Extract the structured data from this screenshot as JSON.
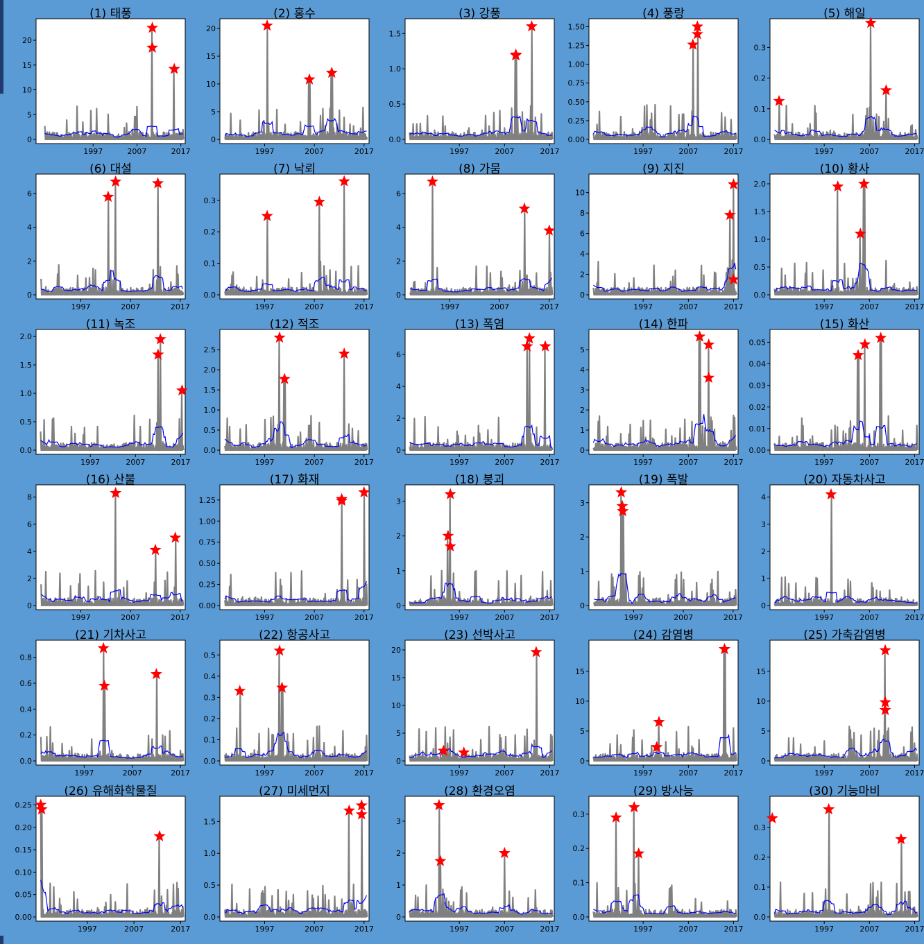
{
  "colors": {
    "background": "#5b9bd5",
    "plot_bg": "#ffffff",
    "raw_series": "#808080",
    "smooth_series": "#0000ff",
    "peak_marker": "#ff0000"
  },
  "chart_data": [
    {
      "type": "line",
      "title": "(1) 태풍",
      "yticks": [
        0,
        5,
        10,
        15,
        20
      ],
      "ylim": [
        0,
        23.5
      ],
      "xticks": [
        1997,
        2007,
        2017
      ],
      "xlim": [
        1984,
        2018
      ],
      "stars": [
        {
          "x": 2010.5,
          "y": 22.5
        },
        {
          "x": 2010.5,
          "y": 18.5
        },
        {
          "x": 2015.5,
          "y": 14.2
        }
      ]
    },
    {
      "type": "line",
      "title": "(2) 홍수",
      "yticks": [
        0,
        5,
        10,
        15,
        20
      ],
      "ylim": [
        0,
        21
      ],
      "xticks": [
        1997,
        2007,
        2017
      ],
      "xlim": [
        1988,
        2018
      ],
      "stars": [
        {
          "x": 1997.5,
          "y": 20.5
        },
        {
          "x": 2006,
          "y": 10.8
        },
        {
          "x": 2010.5,
          "y": 12
        }
      ]
    },
    {
      "type": "line",
      "title": "(3) 강풍",
      "yticks": [
        0.0,
        0.5,
        1.0,
        1.5
      ],
      "ylim": [
        0,
        1.65
      ],
      "xticks": [
        1997,
        2007,
        2017
      ],
      "xlim": [
        1985,
        2018
      ],
      "stars": [
        {
          "x": 2009.5,
          "y": 1.2
        },
        {
          "x": 2009.5,
          "y": 1.19
        },
        {
          "x": 2013,
          "y": 1.6
        }
      ]
    },
    {
      "type": "line",
      "title": "(4) 풍랑",
      "yticks": [
        0.0,
        0.25,
        0.5,
        0.75,
        1.0,
        1.25,
        1.5
      ],
      "ylim": [
        0,
        1.55
      ],
      "xticks": [
        1997,
        2007,
        2017
      ],
      "xlim": [
        1985,
        2018
      ],
      "stars": [
        {
          "x": 2008,
          "y": 1.26
        },
        {
          "x": 2009,
          "y": 1.5
        },
        {
          "x": 2009,
          "y": 1.4
        }
      ]
    },
    {
      "type": "line",
      "title": "(5) 해일",
      "yticks": [
        0.0,
        0.1,
        0.2,
        0.3
      ],
      "ylim": [
        0,
        0.38
      ],
      "xticks": [
        1997,
        2007,
        2017
      ],
      "xlim": [
        1985,
        2018
      ],
      "stars": [
        {
          "x": 1987,
          "y": 0.125
        },
        {
          "x": 2007.3,
          "y": 0.38
        },
        {
          "x": 2010.7,
          "y": 0.16
        }
      ]
    },
    {
      "type": "line",
      "title": "(6) 대설",
      "yticks": [
        0,
        2,
        4,
        6
      ],
      "ylim": [
        0,
        6.9
      ],
      "xticks": [
        1997,
        2007,
        2017
      ],
      "xlim": [
        1988,
        2018
      ],
      "stars": [
        {
          "x": 2002.5,
          "y": 5.8
        },
        {
          "x": 2004,
          "y": 6.7
        },
        {
          "x": 2012.5,
          "y": 6.6
        }
      ]
    },
    {
      "type": "line",
      "title": "(7) 낙뢰",
      "yticks": [
        0.0,
        0.1,
        0.2,
        0.3
      ],
      "ylim": [
        0,
        0.37
      ],
      "xticks": [
        1997,
        2007,
        2017
      ],
      "xlim": [
        1988,
        2018
      ],
      "stars": [
        {
          "x": 1997.5,
          "y": 0.25
        },
        {
          "x": 2008,
          "y": 0.295
        },
        {
          "x": 2013,
          "y": 0.36
        }
      ]
    },
    {
      "type": "line",
      "title": "(8) 가뭄",
      "yticks": [
        0,
        2,
        4,
        6
      ],
      "ylim": [
        0,
        6.9
      ],
      "xticks": [
        1997,
        2007,
        2017
      ],
      "xlim": [
        1988,
        2018
      ],
      "stars": [
        {
          "x": 1993.5,
          "y": 6.7
        },
        {
          "x": 2012,
          "y": 5.1
        },
        {
          "x": 2017,
          "y": 3.8
        }
      ]
    },
    {
      "type": "line",
      "title": "(9) 지진",
      "yticks": [
        0,
        2,
        4,
        6,
        8,
        10
      ],
      "ylim": [
        0,
        11.4
      ],
      "xticks": [
        1997,
        2007,
        2017
      ],
      "xlim": [
        1985,
        2018
      ],
      "stars": [
        {
          "x": 2016.2,
          "y": 7.8
        },
        {
          "x": 2017,
          "y": 10.8
        },
        {
          "x": 2017,
          "y": 1.5
        }
      ]
    },
    {
      "type": "line",
      "title": "(10) 황사",
      "yticks": [
        0.0,
        0.5,
        1.0,
        1.5,
        2.0
      ],
      "ylim": [
        0,
        2.1
      ],
      "xticks": [
        1997,
        2007,
        2017
      ],
      "xlim": [
        1985,
        2018
      ],
      "stars": [
        {
          "x": 2000,
          "y": 1.95
        },
        {
          "x": 2005,
          "y": 1.1
        },
        {
          "x": 2005.8,
          "y": 2.0
        }
      ]
    },
    {
      "type": "line",
      "title": "(11) 녹조",
      "yticks": [
        0.0,
        0.5,
        1.0,
        1.5,
        2.0
      ],
      "ylim": [
        0,
        2.05
      ],
      "xticks": [
        1997,
        2007,
        2017
      ],
      "xlim": [
        1985,
        2018
      ],
      "stars": [
        {
          "x": 2012,
          "y": 1.68
        },
        {
          "x": 2012.5,
          "y": 1.95
        },
        {
          "x": 2017.3,
          "y": 1.05
        }
      ]
    },
    {
      "type": "line",
      "title": "(12) 적조",
      "yticks": [
        0.0,
        0.5,
        1.0,
        1.5,
        2.0,
        2.5
      ],
      "ylim": [
        0,
        2.9
      ],
      "xticks": [
        1997,
        2007,
        2017
      ],
      "xlim": [
        1988,
        2018
      ],
      "stars": [
        {
          "x": 2000,
          "y": 2.8
        },
        {
          "x": 2001,
          "y": 1.77
        },
        {
          "x": 2013,
          "y": 2.4
        }
      ]
    },
    {
      "type": "line",
      "title": "(13) 폭염",
      "yticks": [
        0,
        2,
        4,
        6
      ],
      "ylim": [
        0,
        7.3
      ],
      "xticks": [
        1997,
        2007,
        2017
      ],
      "xlim": [
        1985,
        2018
      ],
      "stars": [
        {
          "x": 2012,
          "y": 6.5
        },
        {
          "x": 2012.5,
          "y": 7.0
        },
        {
          "x": 2016,
          "y": 6.5
        }
      ]
    },
    {
      "type": "line",
      "title": "(14) 한파",
      "yticks": [
        0,
        1,
        2,
        3,
        4,
        5
      ],
      "ylim": [
        0,
        5.8
      ],
      "xticks": [
        1997,
        2007,
        2017
      ],
      "xlim": [
        1985,
        2018
      ],
      "stars": [
        {
          "x": 2009.5,
          "y": 5.65
        },
        {
          "x": 2011.5,
          "y": 5.25
        },
        {
          "x": 2011.5,
          "y": 3.6
        }
      ]
    },
    {
      "type": "line",
      "title": "(15) 화산",
      "yticks": [
        0.0,
        0.01,
        0.02,
        0.03,
        0.04,
        0.05
      ],
      "ylim": [
        0,
        0.054
      ],
      "xticks": [
        1997,
        2007,
        2017
      ],
      "xlim": [
        1985,
        2018
      ],
      "stars": [
        {
          "x": 2004.5,
          "y": 0.044
        },
        {
          "x": 2006,
          "y": 0.049
        },
        {
          "x": 2009.5,
          "y": 0.052
        }
      ]
    },
    {
      "type": "line",
      "title": "(16) 산불",
      "yticks": [
        0,
        2,
        4,
        6,
        8
      ],
      "ylim": [
        0,
        8.6
      ],
      "xticks": [
        1997,
        2007,
        2017
      ],
      "xlim": [
        1988,
        2018
      ],
      "stars": [
        {
          "x": 2004,
          "y": 8.3
        },
        {
          "x": 2012,
          "y": 4.1
        },
        {
          "x": 2016,
          "y": 5.0
        }
      ]
    },
    {
      "type": "line",
      "title": "(17) 화재",
      "yticks": [
        0.0,
        0.25,
        0.5,
        0.75,
        1.0,
        1.25
      ],
      "ylim": [
        0,
        1.38
      ],
      "xticks": [
        1997,
        2007,
        2017
      ],
      "xlim": [
        1988,
        2018
      ],
      "stars": [
        {
          "x": 2012.5,
          "y": 1.26
        },
        {
          "x": 2012.5,
          "y": 1.24
        },
        {
          "x": 2017,
          "y": 1.34
        }
      ]
    },
    {
      "type": "line",
      "title": "(18) 붕괴",
      "yticks": [
        0,
        1,
        2,
        3
      ],
      "ylim": [
        0,
        3.35
      ],
      "xticks": [
        1997,
        2007,
        2017
      ],
      "xlim": [
        1985,
        2018
      ],
      "stars": [
        {
          "x": 1995,
          "y": 3.2
        },
        {
          "x": 1994.5,
          "y": 2.0
        },
        {
          "x": 1995,
          "y": 1.7
        }
      ]
    },
    {
      "type": "line",
      "title": "(19) 폭발",
      "yticks": [
        0,
        1,
        2,
        3
      ],
      "ylim": [
        0,
        3.4
      ],
      "xticks": [
        1997,
        2007,
        2017
      ],
      "xlim": [
        1988,
        2018
      ],
      "stars": [
        {
          "x": 1994.5,
          "y": 3.3
        },
        {
          "x": 1994.7,
          "y": 2.9
        },
        {
          "x": 1994.8,
          "y": 2.75
        }
      ]
    },
    {
      "type": "line",
      "title": "(20) 자동차사고",
      "yticks": [
        0,
        1,
        2,
        3,
        4
      ],
      "ylim": [
        0,
        4.3
      ],
      "xticks": [
        1997,
        2007,
        2017
      ],
      "xlim": [
        1985,
        2018
      ],
      "stars": [
        {
          "x": 1998.5,
          "y": 4.1
        }
      ]
    },
    {
      "type": "line",
      "title": "(21) 기차사고",
      "yticks": [
        0.0,
        0.2,
        0.4,
        0.6,
        0.8
      ],
      "ylim": [
        0,
        0.9
      ],
      "xticks": [
        1997,
        2007,
        2017
      ],
      "xlim": [
        1987,
        2018
      ],
      "stars": [
        {
          "x": 2001,
          "y": 0.87
        },
        {
          "x": 2001.2,
          "y": 0.58
        },
        {
          "x": 2012,
          "y": 0.67
        }
      ]
    },
    {
      "type": "line",
      "title": "(22) 항공사고",
      "yticks": [
        0.0,
        0.1,
        0.2,
        0.3,
        0.4,
        0.5
      ],
      "ylim": [
        0,
        0.55
      ],
      "xticks": [
        1997,
        2007,
        2017
      ],
      "xlim": [
        1988,
        2018
      ],
      "stars": [
        {
          "x": 1992,
          "y": 0.33
        },
        {
          "x": 2000,
          "y": 0.52
        },
        {
          "x": 2000.5,
          "y": 0.345
        }
      ]
    },
    {
      "type": "line",
      "title": "(23) 선박사고",
      "yticks": [
        0,
        5,
        10,
        15,
        20
      ],
      "ylim": [
        0,
        21
      ],
      "xticks": [
        1997,
        2007,
        2017
      ],
      "xlim": [
        1985,
        2018
      ],
      "stars": [
        {
          "x": 1993.5,
          "y": 1.8
        },
        {
          "x": 1998,
          "y": 1.5
        },
        {
          "x": 2014,
          "y": 19.6
        }
      ]
    },
    {
      "type": "line",
      "title": "(24) 감염병",
      "yticks": [
        0,
        5,
        10,
        15
      ],
      "ylim": [
        0,
        19.5
      ],
      "xticks": [
        1997,
        2007,
        2017
      ],
      "xlim": [
        1985,
        2018
      ],
      "stars": [
        {
          "x": 2000,
          "y": 2.3
        },
        {
          "x": 2000.5,
          "y": 6.5
        },
        {
          "x": 2015,
          "y": 18.7
        }
      ]
    },
    {
      "type": "line",
      "title": "(25) 가축감염병",
      "yticks": [
        0,
        5,
        10,
        15
      ],
      "ylim": [
        0,
        19.5
      ],
      "xticks": [
        1997,
        2007,
        2017
      ],
      "xlim": [
        1985,
        2018
      ],
      "stars": [
        {
          "x": 2010.5,
          "y": 18.5
        },
        {
          "x": 2010.5,
          "y": 9.8
        },
        {
          "x": 2010.5,
          "y": 8.5
        }
      ]
    },
    {
      "type": "line",
      "title": "(26) 유해화학물질",
      "yticks": [
        0.0,
        0.05,
        0.1,
        0.15,
        0.2,
        0.25
      ],
      "ylim": [
        0,
        0.26
      ],
      "xticks": [
        1997,
        2007,
        2017
      ],
      "xlim": [
        1986,
        2018
      ],
      "stars": [
        {
          "x": 1987,
          "y": 0.25
        },
        {
          "x": 1987.2,
          "y": 0.24
        },
        {
          "x": 2012.5,
          "y": 0.18
        }
      ]
    },
    {
      "type": "line",
      "title": "(27) 미세먼지",
      "yticks": [
        0.0,
        0.5,
        1.0,
        1.5
      ],
      "ylim": [
        0,
        1.83
      ],
      "xticks": [
        1997,
        2007,
        2017
      ],
      "xlim": [
        1988,
        2018
      ],
      "stars": [
        {
          "x": 2014,
          "y": 1.67
        },
        {
          "x": 2016.5,
          "y": 1.75
        },
        {
          "x": 2016.5,
          "y": 1.61
        }
      ]
    },
    {
      "type": "line",
      "title": "(28) 환경오염",
      "yticks": [
        0,
        1,
        2,
        3
      ],
      "ylim": [
        0,
        3.65
      ],
      "xticks": [
        1997,
        2007,
        2017
      ],
      "xlim": [
        1985,
        2018
      ],
      "stars": [
        {
          "x": 1992.5,
          "y": 3.5
        },
        {
          "x": 1992.8,
          "y": 1.75
        },
        {
          "x": 2007,
          "y": 2.0
        }
      ]
    },
    {
      "type": "line",
      "title": "(29) 방사능",
      "yticks": [
        0.0,
        0.1,
        0.2,
        0.3
      ],
      "ylim": [
        0,
        0.34
      ],
      "xticks": [
        1997,
        2007,
        2017
      ],
      "xlim": [
        1985,
        2018
      ],
      "stars": [
        {
          "x": 1991,
          "y": 0.29
        },
        {
          "x": 1995,
          "y": 0.32
        },
        {
          "x": 1996,
          "y": 0.185
        }
      ]
    },
    {
      "type": "line",
      "title": "(30) 기능마비",
      "yticks": [
        0.0,
        0.1,
        0.2,
        0.3
      ],
      "ylim": [
        0,
        0.39
      ],
      "xticks": [
        1997,
        2007,
        2017
      ],
      "xlim": [
        1985,
        2018
      ],
      "stars": [
        {
          "x": 1985.5,
          "y": 0.33
        },
        {
          "x": 1998,
          "y": 0.36
        },
        {
          "x": 2014,
          "y": 0.26
        }
      ]
    }
  ]
}
